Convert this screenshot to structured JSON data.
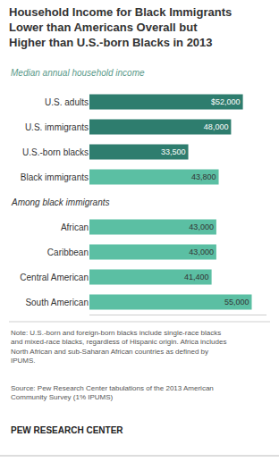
{
  "chart_data": {
    "type": "bar",
    "orientation": "horizontal",
    "title": "Household Income for Black Immigrants\nLower than Americans Overall but\nHigher than U.S.-born Blacks in 2013",
    "subtitle": "Median annual household income",
    "categories": [
      "U.S. adults",
      "U.S. immigrants",
      "U.S.-born blacks",
      "Black immigrants",
      null,
      "African",
      "Caribbean",
      "Central American",
      "South American"
    ],
    "values": [
      52000,
      48000,
      33500,
      43800,
      null,
      43000,
      43000,
      41400,
      55000
    ],
    "value_labels": [
      "$52,000",
      "48,000",
      "33,500",
      "43,800",
      null,
      "43,000",
      "43,000",
      "41,400",
      "55,000"
    ],
    "colors": [
      "#2e7d6e",
      "#2e7d6e",
      "#2e7d6e",
      "#5bbfa3",
      null,
      "#5bbfa3",
      "#5bbfa3",
      "#5bbfa3",
      "#5bbfa3"
    ],
    "label_colors": [
      "white",
      "white",
      "white",
      "#333333",
      null,
      "#333333",
      "#333333",
      "#333333",
      "#333333"
    ],
    "data_labels": true,
    "tick_labels": "y",
    "grid": false,
    "xlim": [
      0,
      60000
    ],
    "xticks": [],
    "section_label": "Among black immigrants",
    "note": "Note: U.S.-born and foreign-born blacks include single-race blacks\nand mixed-race blacks, regardless of Hispanic origin. Africa includes\nNorth African and sub-Saharan African countries as defined by\nIPUMS.",
    "source": "Source: Pew Research Center tabulations of the 2013 American\nCommunity Survey (1% IPUMS)",
    "brand": "PEW RESEARCH CENTER"
  }
}
